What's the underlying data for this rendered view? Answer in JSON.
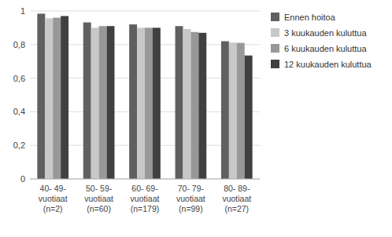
{
  "chart_data": {
    "type": "bar",
    "categories": [
      "40- 49-\nvuotiaat\n(n=2)",
      "50- 59-\nvuotiaat\n(n=60)",
      "60- 69-\nvuotiaat\n(n=179)",
      "70- 79-\nvuotiaat\n(n=99)",
      "80- 89-\nvuotiaat\n(n=27)"
    ],
    "series": [
      {
        "name": "Ennen hoitoa",
        "color": "#606060",
        "values": [
          0.984,
          0.932,
          0.92,
          0.91,
          0.82
        ]
      },
      {
        "name": "3 kuukauden kuluttua",
        "color": "#C8C8C8",
        "values": [
          0.956,
          0.9,
          0.9,
          0.893,
          0.812
        ]
      },
      {
        "name": "6 kuukauden kuluttua",
        "color": "#989898",
        "values": [
          0.96,
          0.91,
          0.9,
          0.875,
          0.81
        ]
      },
      {
        "name": "12 kuukauden kuluttua",
        "color": "#404040",
        "values": [
          0.97,
          0.91,
          0.9,
          0.87,
          0.735
        ]
      }
    ],
    "ylim": [
      0,
      1
    ],
    "yticks": [
      0,
      {
        "value": 0.2,
        "label": "0,2"
      },
      {
        "value": 0.4,
        "label": "0,4"
      },
      {
        "value": 0.6,
        "label": "0,6"
      },
      {
        "value": 0.8,
        "label": "0,8"
      },
      1
    ],
    "grid": true,
    "legend": "right"
  }
}
